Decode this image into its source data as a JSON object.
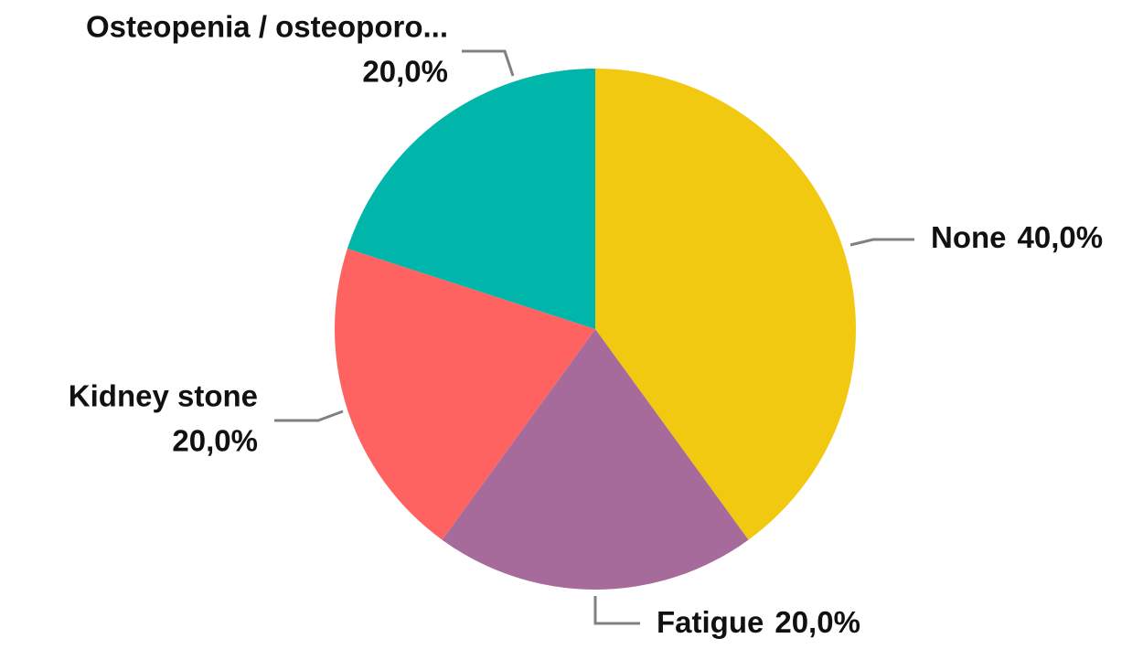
{
  "chart_data": {
    "type": "pie",
    "categories": [
      "None",
      "Fatigue",
      "Kidney stone",
      "Osteopenia / osteoporo..."
    ],
    "values": [
      40,
      20,
      20,
      20
    ],
    "value_labels": [
      "40,0%",
      "20,0%",
      "20,0%",
      "20,0%"
    ],
    "colors": [
      "#f1c911",
      "#a66b9a",
      "#fe6361",
      "#00b5a9"
    ]
  }
}
